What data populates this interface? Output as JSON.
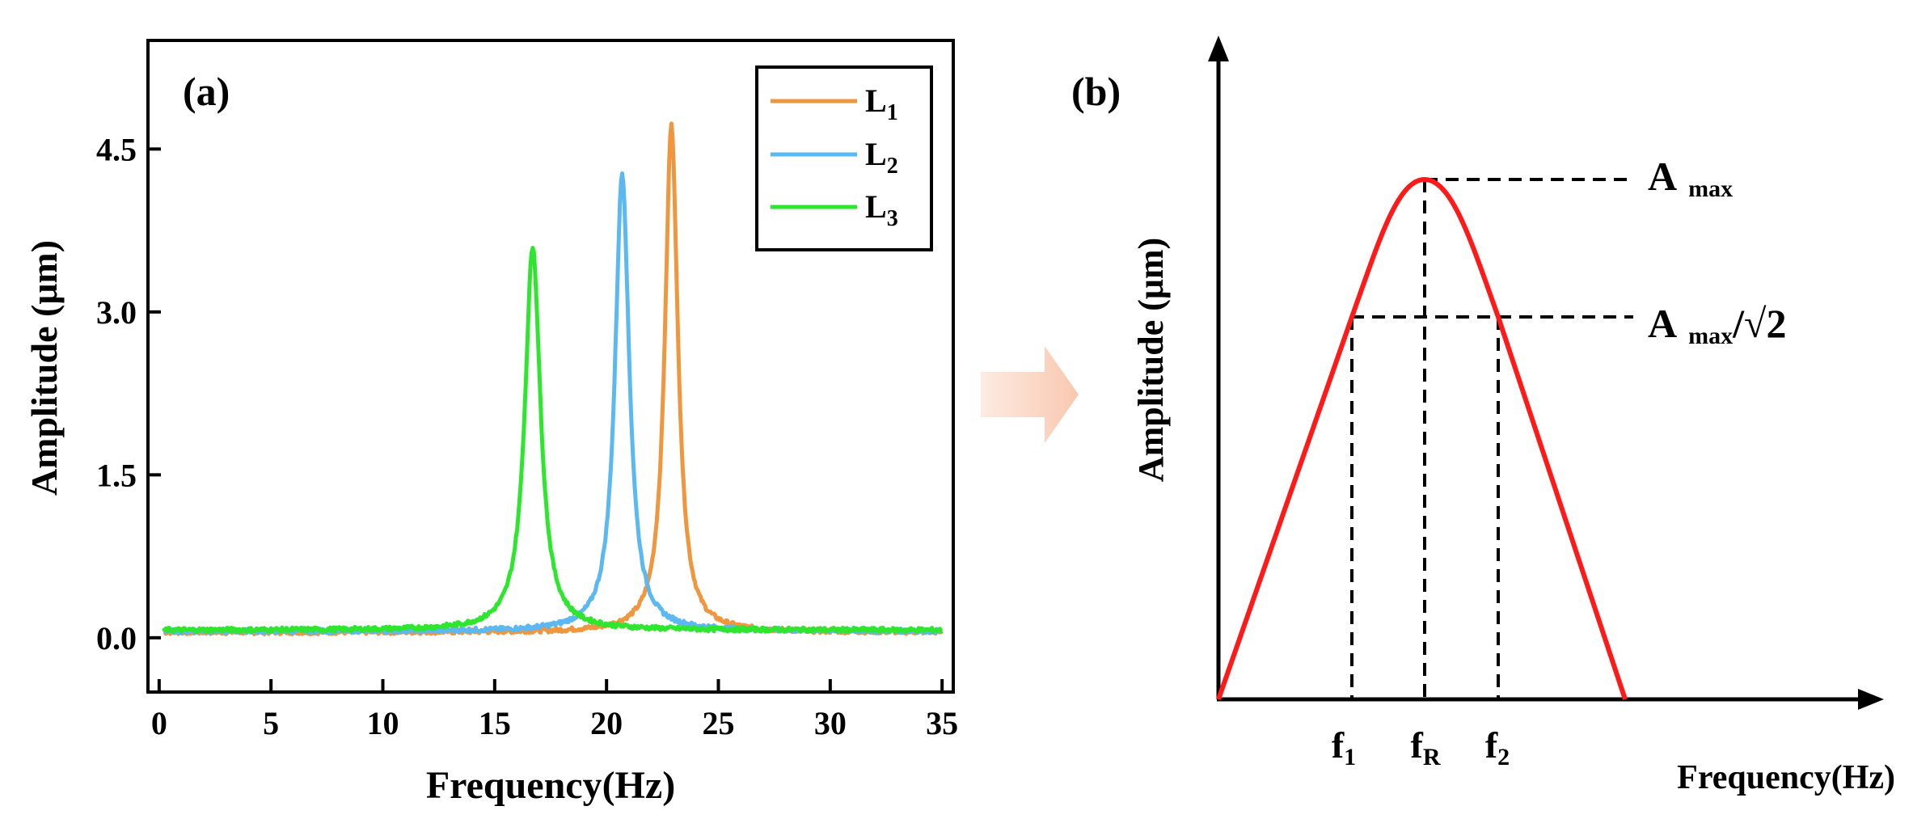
{
  "colors": {
    "L1": "#F0963E",
    "L2": "#5BB8F0",
    "L3": "#2EE62E",
    "curve_b": "#FF1A1A",
    "arrow": "#FAD2BE",
    "axis": "#000000"
  },
  "chart_data": [
    {
      "type": "line",
      "panel_label": "(a)",
      "title": "",
      "xlabel": "Frequency(Hz)",
      "ylabel": "Amplitude (μm)",
      "xlim": [
        -0.5,
        35.5
      ],
      "ylim": [
        -0.5,
        5.5
      ],
      "xticks": [
        0,
        5,
        10,
        15,
        20,
        25,
        30,
        35
      ],
      "xtick_labels": [
        "0",
        "5",
        "10",
        "15",
        "20",
        "25",
        "30",
        "35"
      ],
      "yticks": [
        0.0,
        1.5,
        3.0,
        4.5
      ],
      "ytick_labels": [
        "0.0",
        "1.5",
        "3.0",
        "4.5"
      ],
      "legend_position": "top-right",
      "series": [
        {
          "name": "L",
          "subscript": "1",
          "color": "L1",
          "peak_x": 22.9,
          "peak_y": 4.72,
          "base": 0.05,
          "gamma": 0.35
        },
        {
          "name": "L",
          "subscript": "2",
          "color": "L2",
          "peak_x": 20.7,
          "peak_y": 4.28,
          "base": 0.06,
          "gamma": 0.38
        },
        {
          "name": "L",
          "subscript": "3",
          "color": "L3",
          "peak_x": 16.7,
          "peak_y": 3.6,
          "base": 0.07,
          "gamma": 0.42
        }
      ]
    },
    {
      "type": "line",
      "panel_label": "(b)",
      "xlabel": "Frequency(Hz)",
      "ylabel": "Amplitude (μm)",
      "schematic": true,
      "curve": {
        "peak_label": "A",
        "peak_sub": "max",
        "half_label": "A",
        "half_sub": "max",
        "half_suffix": "/√2"
      },
      "marks": [
        {
          "label": "f",
          "sub": "1"
        },
        {
          "label": "f",
          "sub": "R"
        },
        {
          "label": "f",
          "sub": "2"
        }
      ]
    }
  ]
}
